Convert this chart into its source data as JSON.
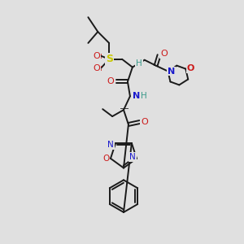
{
  "bg_color": "#e0e0e0",
  "bond_color": "#1a1a1a",
  "bond_width": 1.4,
  "atom_colors": {
    "C": "#1a1a1a",
    "H": "#3a9a8a",
    "N": "#1a1acc",
    "O": "#cc1a1a",
    "S": "#c8c800"
  },
  "figsize": [
    3.0,
    3.0
  ],
  "dpi": 100
}
